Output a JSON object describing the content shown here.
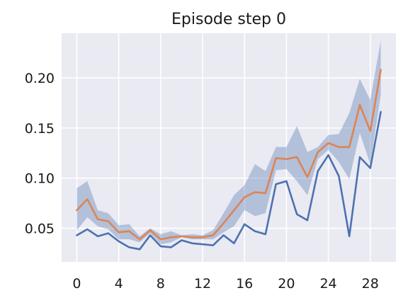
{
  "chart_data": {
    "type": "line",
    "title": "Episode step 0",
    "xlabel": "",
    "ylabel": "",
    "x": [
      0,
      1,
      2,
      3,
      4,
      5,
      6,
      7,
      8,
      9,
      10,
      11,
      12,
      13,
      14,
      15,
      16,
      17,
      18,
      19,
      20,
      21,
      22,
      23,
      24,
      25,
      26,
      27,
      28,
      29
    ],
    "xlim": [
      -1.45,
      30.45
    ],
    "ylim": [
      0.0165,
      0.2445
    ],
    "xticks": [
      0,
      4,
      8,
      12,
      16,
      20,
      24,
      28
    ],
    "xtick_labels": [
      "0",
      "4",
      "8",
      "12",
      "16",
      "20",
      "24",
      "28"
    ],
    "yticks": [
      0.05,
      0.1,
      0.15,
      0.2
    ],
    "ytick_labels": [
      "0.05",
      "0.10",
      "0.15",
      "0.20"
    ],
    "grid": true,
    "series": [
      {
        "color": "#4c72b0",
        "values": [
          0.043,
          0.049,
          0.042,
          0.045,
          0.037,
          0.031,
          0.029,
          0.043,
          0.032,
          0.031,
          0.038,
          0.035,
          0.034,
          0.033,
          0.043,
          0.035,
          0.054,
          0.047,
          0.044,
          0.094,
          0.097,
          0.064,
          0.058,
          0.107,
          0.123,
          0.102,
          0.042,
          0.121,
          0.11,
          0.166
        ]
      },
      {
        "color": "#dd8452",
        "values": [
          0.068,
          0.079,
          0.059,
          0.057,
          0.046,
          0.047,
          0.039,
          0.048,
          0.039,
          0.041,
          0.042,
          0.041,
          0.041,
          0.043,
          0.055,
          0.068,
          0.081,
          0.086,
          0.085,
          0.12,
          0.119,
          0.121,
          0.101,
          0.126,
          0.135,
          0.131,
          0.131,
          0.173,
          0.147,
          0.208
        ],
        "band_upper": [
          0.09,
          0.097,
          0.068,
          0.065,
          0.053,
          0.054,
          0.042,
          0.05,
          0.044,
          0.047,
          0.043,
          0.044,
          0.043,
          0.048,
          0.065,
          0.083,
          0.093,
          0.114,
          0.107,
          0.131,
          0.131,
          0.152,
          0.126,
          0.131,
          0.143,
          0.144,
          0.165,
          0.199,
          0.178,
          0.237
        ],
        "band_lower": [
          0.048,
          0.061,
          0.052,
          0.049,
          0.039,
          0.039,
          0.036,
          0.045,
          0.034,
          0.036,
          0.041,
          0.039,
          0.039,
          0.039,
          0.046,
          0.052,
          0.068,
          0.062,
          0.065,
          0.108,
          0.109,
          0.097,
          0.083,
          0.119,
          0.128,
          0.116,
          0.099,
          0.145,
          0.114,
          0.183
        ],
        "band_color": "#4c72b0"
      }
    ]
  }
}
